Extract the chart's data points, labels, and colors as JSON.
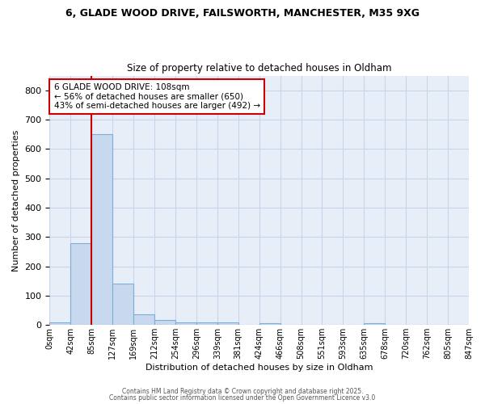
{
  "title_line1": "6, GLADE WOOD DRIVE, FAILSWORTH, MANCHESTER, M35 9XG",
  "title_line2": "Size of property relative to detached houses in Oldham",
  "xlabel": "Distribution of detached houses by size in Oldham",
  "ylabel": "Number of detached properties",
  "bin_labels": [
    "0sqm",
    "42sqm",
    "85sqm",
    "127sqm",
    "169sqm",
    "212sqm",
    "254sqm",
    "296sqm",
    "339sqm",
    "381sqm",
    "424sqm",
    "466sqm",
    "508sqm",
    "551sqm",
    "593sqm",
    "635sqm",
    "678sqm",
    "720sqm",
    "762sqm",
    "805sqm",
    "847sqm"
  ],
  "bar_values": [
    8,
    278,
    650,
    142,
    36,
    16,
    10,
    10,
    8,
    0,
    7,
    0,
    0,
    0,
    0,
    6,
    0,
    0,
    0,
    0
  ],
  "bar_color": "#c8d8ee",
  "bar_edge_color": "#7ab0d8",
  "annotation_text": "6 GLADE WOOD DRIVE: 108sqm\n← 56% of detached houses are smaller (650)\n43% of semi-detached houses are larger (492) →",
  "annotation_box_color": "white",
  "annotation_box_edge_color": "#cc0000",
  "red_line_color": "#cc0000",
  "grid_color": "#c8d4e8",
  "background_color": "#ffffff",
  "plot_bg_color": "#e8eef8",
  "ylim": [
    0,
    850
  ],
  "yticks": [
    0,
    100,
    200,
    300,
    400,
    500,
    600,
    700,
    800
  ],
  "footer_line1": "Contains HM Land Registry data © Crown copyright and database right 2025.",
  "footer_line2": "Contains public sector information licensed under the Open Government Licence v3.0"
}
